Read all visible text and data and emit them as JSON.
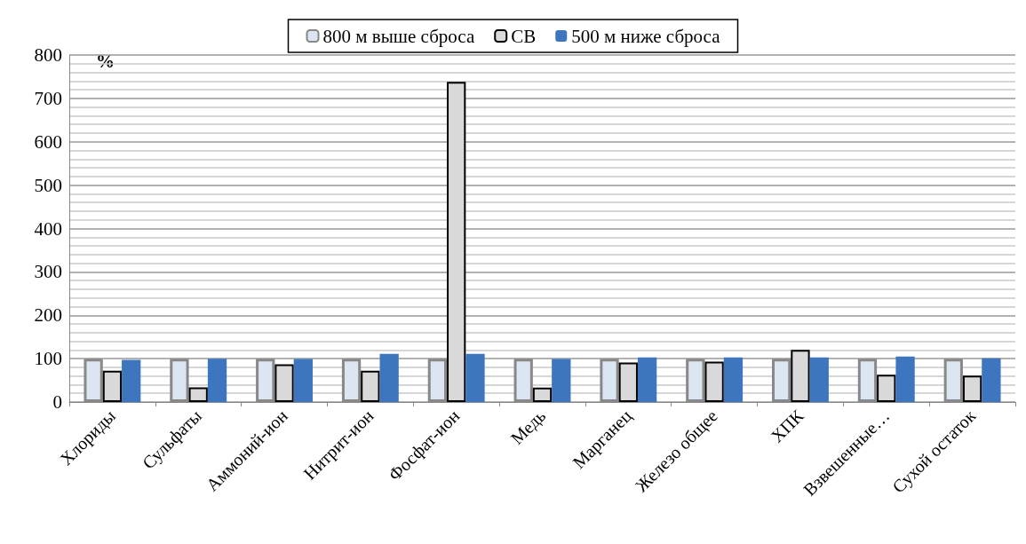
{
  "chart_data": {
    "type": "bar",
    "categories": [
      "Хлориды",
      "Сульфаты",
      "Аммоний-ион",
      "Нитрит-ион",
      "Фосфат-ион",
      "Медь",
      "Марганец",
      "Железо общее",
      "ХПК",
      "Взвешенные…",
      "Сухой остаток"
    ],
    "series": [
      {
        "name": "800 м выше сброса",
        "color": "#dce6f2",
        "values": [
          100,
          100,
          100,
          100,
          100,
          100,
          100,
          100,
          100,
          100,
          100
        ]
      },
      {
        "name": "СВ",
        "color": "#d9d9d9",
        "values": [
          72,
          34,
          87,
          72,
          738,
          33,
          91,
          93,
          120,
          63,
          61
        ]
      },
      {
        "name": "500 м ниже сброса",
        "color": "#3d76bf",
        "values": [
          97,
          100,
          99,
          111,
          111,
          99,
          103,
          103,
          103,
          105,
          101
        ]
      }
    ],
    "ylim": [
      0,
      800
    ],
    "yticks": [
      0,
      100,
      200,
      300,
      400,
      500,
      600,
      700,
      800
    ],
    "grid": "y",
    "legend": "top",
    "annotations": [
      "%"
    ]
  }
}
